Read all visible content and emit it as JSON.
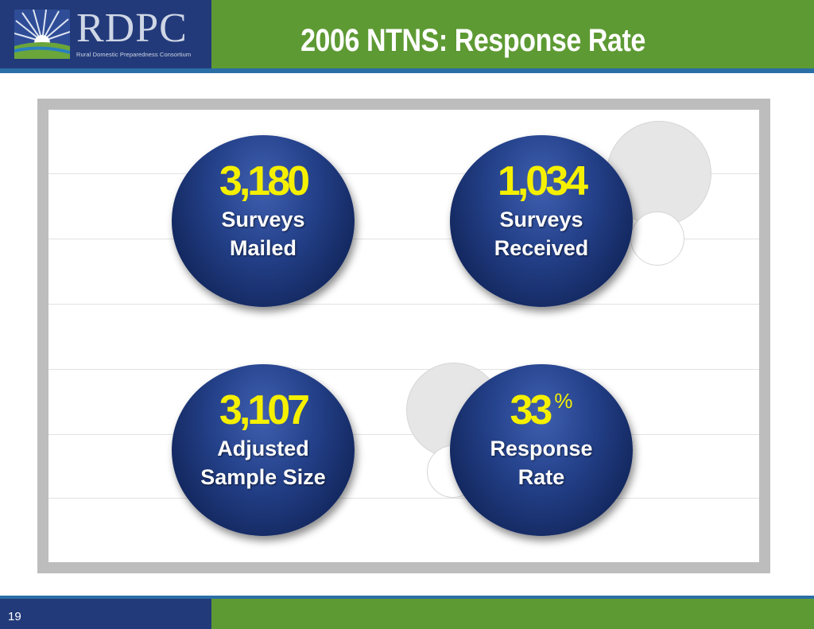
{
  "header": {
    "logo_text": "RDPC",
    "logo_subtitle": "Rural Domestic Preparedness Consortium",
    "title": "2006 NTNS:  Response Rate"
  },
  "stats": [
    {
      "value": "3,180",
      "line1": "Surveys",
      "line2": "Mailed"
    },
    {
      "value": "1,034",
      "line1": "Surveys",
      "line2": "Received"
    },
    {
      "value": "3,107",
      "line1": "Adjusted",
      "line2": "Sample Size"
    },
    {
      "value": "33",
      "suffix": "%",
      "line1": "Response",
      "line2": "Rate"
    }
  ],
  "footer": {
    "page_number": "19"
  },
  "colors": {
    "header_green": "#5e9a34",
    "logo_navy": "#233a7a",
    "rule_blue": "#2a6ea6",
    "stat_yellow": "#f5f000"
  }
}
